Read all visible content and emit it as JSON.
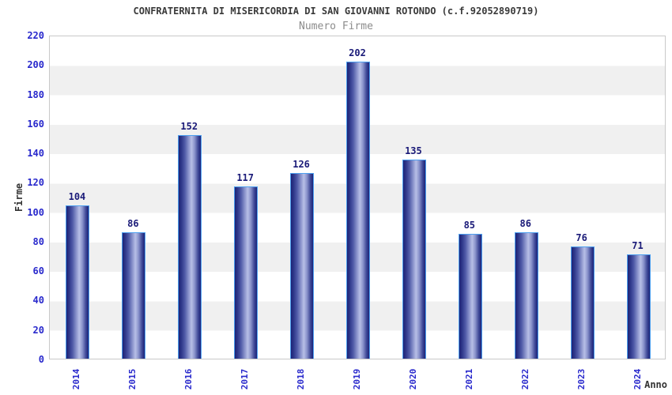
{
  "title": "CONFRATERNITA DI MISERICORDIA DI SAN GIOVANNI ROTONDO (c.f.92052890719)",
  "subtitle": "Numero Firme",
  "chart_data": {
    "type": "bar",
    "categories": [
      "2014",
      "2015",
      "2016",
      "2017",
      "2018",
      "2019",
      "2020",
      "2021",
      "2022",
      "2023",
      "2024"
    ],
    "values": [
      104,
      86,
      152,
      117,
      126,
      202,
      135,
      85,
      86,
      76,
      71
    ],
    "title": "CONFRATERNITA DI MISERICORDIA DI SAN GIOVANNI ROTONDO (c.f.92052890719)",
    "subtitle": "Numero Firme",
    "xlabel": "Anno",
    "ylabel": "Firme",
    "ylim": [
      0,
      220
    ],
    "ytick_step": 20,
    "yticks": [
      0,
      20,
      40,
      60,
      80,
      100,
      120,
      140,
      160,
      180,
      200,
      220
    ],
    "grid": "alternating horizontal bands",
    "legend": "none",
    "bar_labels_shown": true,
    "x_tick_rotation_deg": 90
  },
  "colors": {
    "background": "#ffffff",
    "band_gray": "#f0f0f0",
    "plot_border": "#c9c9c9",
    "bar_dark": "#1c2377",
    "bar_light": "#b7bfe6",
    "bar_border": "#4da0f0",
    "bar_value_text": "#1a1a78",
    "axis_tick_text": "#2828cc",
    "axis_title_text": "#333333",
    "title_text": "#3a3a3a",
    "subtitle_text": "#8c8c8c"
  }
}
